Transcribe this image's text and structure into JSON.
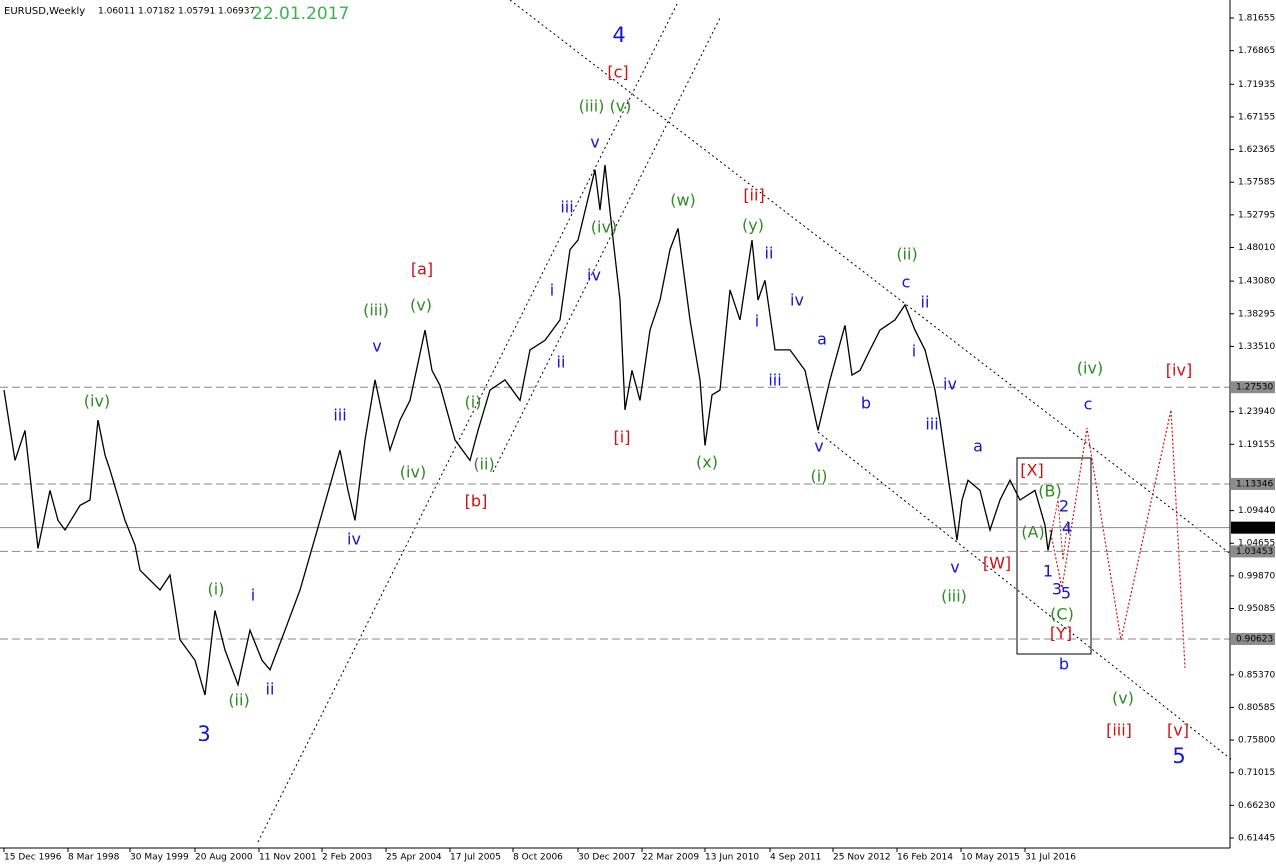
{
  "chart_data": {
    "type": "line",
    "title": "EURUSD,Weekly",
    "ohlc": [
      1.06011,
      1.07182,
      1.05791,
      1.06937
    ],
    "date": "22.01.2017",
    "color": "#000000",
    "xlim": [
      -4,
      1226
    ],
    "ylim": [
      0.6027,
      1.84
    ],
    "xticks": [
      {
        "value": 0,
        "label": "15 Dec 1996"
      },
      {
        "value": 64,
        "label": "8 Mar 1998"
      },
      {
        "value": 126,
        "label": "30 May 1999"
      },
      {
        "value": 191,
        "label": "20 Aug 2000"
      },
      {
        "value": 255,
        "label": "11 Nov 2001"
      },
      {
        "value": 318,
        "label": "2 Feb 2003"
      },
      {
        "value": 382,
        "label": "25 Apr 2004"
      },
      {
        "value": 446,
        "label": "17 Jul 2005"
      },
      {
        "value": 509,
        "label": "8 Oct 2006"
      },
      {
        "value": 574,
        "label": "30 Dec 2007"
      },
      {
        "value": 638,
        "label": "22 Mar 2009"
      },
      {
        "value": 701,
        "label": "13 Jun 2010"
      },
      {
        "value": 766,
        "label": "4 Sep 2011"
      },
      {
        "value": 829,
        "label": "25 Nov 2012"
      },
      {
        "value": 893,
        "label": "16 Feb 2014"
      },
      {
        "value": 957,
        "label": "10 May 2015"
      },
      {
        "value": 1021,
        "label": "31 Jul 2016"
      }
    ],
    "yticks": [
      {
        "value": 1.81655,
        "label": "1.81655"
      },
      {
        "value": 1.76865,
        "label": "1.76865"
      },
      {
        "value": 1.71935,
        "label": "1.71935"
      },
      {
        "value": 1.67155,
        "label": "1.67155"
      },
      {
        "value": 1.62365,
        "label": "1.62365"
      },
      {
        "value": 1.57585,
        "label": "1.57585"
      },
      {
        "value": 1.52795,
        "label": "1.52795"
      },
      {
        "value": 1.4801,
        "label": "1.48010"
      },
      {
        "value": 1.4308,
        "label": "1.43080"
      },
      {
        "value": 1.38295,
        "label": "1.38295"
      },
      {
        "value": 1.3351,
        "label": "1.33510"
      },
      {
        "value": 1.2394,
        "label": "1.23940"
      },
      {
        "value": 1.19155,
        "label": "1.19155"
      },
      {
        "value": 1.0944,
        "label": "1.09440"
      },
      {
        "value": 1.04655,
        "label": "1.04655"
      },
      {
        "value": 0.9987,
        "label": "0.99870"
      },
      {
        "value": 0.95085,
        "label": "0.95085"
      },
      {
        "value": 0.8537,
        "label": "0.85370"
      },
      {
        "value": 0.80585,
        "label": "0.80585"
      },
      {
        "value": 0.758,
        "label": "0.75800"
      },
      {
        "value": 0.71015,
        "label": "0.71015"
      },
      {
        "value": 0.6623,
        "label": "0.66230"
      },
      {
        "value": 0.61445,
        "label": "0.61445"
      }
    ],
    "levels": [
      {
        "value": 1.2753,
        "label": "1.27530"
      },
      {
        "value": 1.13346,
        "label": "1.13346"
      },
      {
        "value": 1.03453,
        "label": "1.03453"
      },
      {
        "value": 0.90623,
        "label": "0.90623"
      }
    ],
    "x": [
      0,
      11,
      21,
      34,
      46,
      54,
      61,
      76,
      86,
      94,
      101,
      106,
      121,
      131,
      136,
      156,
      166,
      176,
      191,
      201,
      211,
      221,
      234,
      246,
      258,
      266,
      281,
      296,
      316,
      336,
      344,
      351,
      361,
      371,
      386,
      396,
      406,
      421,
      428,
      436,
      451,
      466,
      474,
      486,
      501,
      516,
      526,
      541,
      556,
      566,
      574,
      586,
      591,
      596,
      601,
      608,
      616,
      621,
      628,
      636,
      646,
      656,
      666,
      674,
      686,
      696,
      701,
      708,
      716,
      726,
      736,
      748,
      754,
      761,
      771,
      786,
      801,
      814,
      826,
      841,
      848,
      856,
      866,
      876,
      891,
      901,
      911,
      921,
      931,
      936,
      946,
      953,
      958,
      964,
      976,
      986,
      996,
      1006,
      1016,
      1031,
      1041,
      1044,
      1048
    ],
    "values": [
      1.271,
      1.168,
      1.212,
      1.039,
      1.124,
      1.08,
      1.066,
      1.102,
      1.11,
      1.227,
      1.176,
      1.154,
      1.08,
      1.044,
      1.007,
      0.978,
      1.0,
      0.905,
      0.875,
      0.824,
      0.948,
      0.89,
      0.839,
      0.919,
      0.875,
      0.861,
      0.919,
      0.978,
      1.08,
      1.183,
      1.124,
      1.08,
      1.198,
      1.286,
      1.183,
      1.227,
      1.256,
      1.359,
      1.3,
      1.278,
      1.198,
      1.168,
      1.212,
      1.271,
      1.286,
      1.256,
      1.33,
      1.344,
      1.374,
      1.477,
      1.491,
      1.564,
      1.594,
      1.535,
      1.601,
      1.506,
      1.403,
      1.242,
      1.3,
      1.256,
      1.359,
      1.403,
      1.477,
      1.508,
      1.374,
      1.286,
      1.19,
      1.264,
      1.271,
      1.418,
      1.374,
      1.491,
      1.403,
      1.432,
      1.33,
      1.33,
      1.3,
      1.212,
      1.286,
      1.366,
      1.293,
      1.3,
      1.33,
      1.359,
      1.374,
      1.396,
      1.359,
      1.33,
      1.271,
      1.227,
      1.124,
      1.051,
      1.11,
      1.139,
      1.124,
      1.066,
      1.11,
      1.139,
      1.11,
      1.124,
      1.073,
      1.036,
      1.066
    ],
    "annotations": [
      {
        "text": "(iv)",
        "x": 93,
        "y": 1.2535,
        "color": "#2e8b22"
      },
      {
        "text": "3",
        "x": 200,
        "y": 0.7652,
        "color": "#1515d0"
      },
      {
        "text": "(i)",
        "x": 212,
        "y": 0.9778,
        "color": "#2e8b22"
      },
      {
        "text": "i",
        "x": 249,
        "y": 0.969,
        "color": "#1515d0"
      },
      {
        "text": "(ii)",
        "x": 235,
        "y": 0.8151,
        "color": "#2e8b22"
      },
      {
        "text": "ii",
        "x": 266,
        "y": 0.8312,
        "color": "#1515d0"
      },
      {
        "text": "iii",
        "x": 336,
        "y": 1.233,
        "color": "#1515d0"
      },
      {
        "text": "iv",
        "x": 350,
        "y": 1.0511,
        "color": "#1515d0"
      },
      {
        "text": "v",
        "x": 373,
        "y": 1.3341,
        "color": "#1515d0"
      },
      {
        "text": "(iii)",
        "x": 372,
        "y": 1.3869,
        "color": "#2e8b22"
      },
      {
        "text": "(iv)",
        "x": 409,
        "y": 1.1494,
        "color": "#2e8b22"
      },
      {
        "text": "[a]",
        "x": 418,
        "y": 1.4471,
        "color": "#d01010"
      },
      {
        "text": "(v)",
        "x": 417,
        "y": 1.3943,
        "color": "#2e8b22"
      },
      {
        "text": "(i)",
        "x": 469,
        "y": 1.252,
        "color": "#2e8b22"
      },
      {
        "text": "(ii)",
        "x": 480,
        "y": 1.1611,
        "color": "#2e8b22"
      },
      {
        "text": "[b]",
        "x": 472,
        "y": 1.1069,
        "color": "#d01010"
      },
      {
        "text": "i",
        "x": 548,
        "y": 1.4163,
        "color": "#1515d0"
      },
      {
        "text": "ii",
        "x": 557,
        "y": 1.3107,
        "color": "#1515d0"
      },
      {
        "text": "iii",
        "x": 563,
        "y": 1.538,
        "color": "#1515d0"
      },
      {
        "text": "iv",
        "x": 590,
        "y": 1.4383,
        "color": "#1515d0"
      },
      {
        "text": "(iv)",
        "x": 600,
        "y": 1.5087,
        "color": "#2e8b22"
      },
      {
        "text": "v",
        "x": 591,
        "y": 1.6333,
        "color": "#1515d0"
      },
      {
        "text": "(iii) (v)",
        "x": 601,
        "y": 1.6861,
        "color": "#2e8b22"
      },
      {
        "text": "[c]",
        "x": 614,
        "y": 1.7359,
        "color": "#d01010"
      },
      {
        "text": "4",
        "x": 615,
        "y": 1.7902,
        "color": "#1515d0"
      },
      {
        "text": "[i]",
        "x": 618,
        "y": 1.2007,
        "color": "#d01010"
      },
      {
        "text": "(w)",
        "x": 679,
        "y": 1.5482,
        "color": "#2e8b22"
      },
      {
        "text": "(x)",
        "x": 703,
        "y": 1.164,
        "color": "#2e8b22"
      },
      {
        "text": "[ii]",
        "x": 750,
        "y": 1.5555,
        "color": "#d01010"
      },
      {
        "text": "(y)",
        "x": 749,
        "y": 1.5116,
        "color": "#2e8b22"
      },
      {
        "text": "ii",
        "x": 765,
        "y": 1.4705,
        "color": "#1515d0"
      },
      {
        "text": "i",
        "x": 753,
        "y": 1.3708,
        "color": "#1515d0"
      },
      {
        "text": "iv",
        "x": 793,
        "y": 1.4016,
        "color": "#1515d0"
      },
      {
        "text": "iii",
        "x": 771,
        "y": 1.2843,
        "color": "#1515d0"
      },
      {
        "text": "v",
        "x": 815,
        "y": 1.1875,
        "color": "#1515d0"
      },
      {
        "text": "(i)",
        "x": 815,
        "y": 1.1435,
        "color": "#2e8b22"
      },
      {
        "text": "a",
        "x": 818,
        "y": 1.3444,
        "color": "#1515d0"
      },
      {
        "text": "b",
        "x": 862,
        "y": 1.2506,
        "color": "#1515d0"
      },
      {
        "text": "(ii)",
        "x": 903,
        "y": 1.469,
        "color": "#2e8b22"
      },
      {
        "text": "c",
        "x": 902,
        "y": 1.428,
        "color": "#1515d0"
      },
      {
        "text": "ii",
        "x": 921,
        "y": 1.3987,
        "color": "#1515d0"
      },
      {
        "text": "i",
        "x": 910,
        "y": 1.3268,
        "color": "#1515d0"
      },
      {
        "text": "iv",
        "x": 946,
        "y": 1.2784,
        "color": "#1515d0"
      },
      {
        "text": "iii",
        "x": 928,
        "y": 1.2198,
        "color": "#1515d0"
      },
      {
        "text": "a",
        "x": 974,
        "y": 1.1875,
        "color": "#1515d0"
      },
      {
        "text": "v",
        "x": 951,
        "y": 1.0101,
        "color": "#1515d0"
      },
      {
        "text": "(iii)",
        "x": 950,
        "y": 0.9676,
        "color": "#2e8b22"
      },
      {
        "text": "[W]",
        "x": 993,
        "y": 1.016,
        "color": "#d01010"
      },
      {
        "text": "[X]",
        "x": 1028,
        "y": 1.1523,
        "color": "#d01010"
      },
      {
        "text": "(B)",
        "x": 1046,
        "y": 1.1215,
        "color": "#2e8b22"
      },
      {
        "text": "2",
        "x": 1060,
        "y": 1.0995,
        "color": "#1515d0"
      },
      {
        "text": "4",
        "x": 1063,
        "y": 1.0673,
        "color": "#1515d0"
      },
      {
        "text": "(A)",
        "x": 1029,
        "y": 1.0614,
        "color": "#2e8b22"
      },
      {
        "text": "1",
        "x": 1044,
        "y": 1.0042,
        "color": "#1515d0"
      },
      {
        "text": "3",
        "x": 1053,
        "y": 0.9778,
        "color": "#1515d0"
      },
      {
        "text": "5",
        "x": 1062,
        "y": 0.972,
        "color": "#1515d0"
      },
      {
        "text": "(C)",
        "x": 1058,
        "y": 0.9412,
        "color": "#2e8b22"
      },
      {
        "text": "[Y]",
        "x": 1057,
        "y": 0.9133,
        "color": "#d01010"
      },
      {
        "text": "b",
        "x": 1060,
        "y": 0.8678,
        "color": "#1515d0"
      },
      {
        "text": "(iv)",
        "x": 1086,
        "y": 1.3019,
        "color": "#2e8b22"
      },
      {
        "text": "c",
        "x": 1084,
        "y": 1.2491,
        "color": "#1515d0"
      },
      {
        "text": "[iv]",
        "x": 1175,
        "y": 1.299,
        "color": "#d01010"
      },
      {
        "text": "(v)",
        "x": 1119,
        "y": 0.818,
        "color": "#2e8b22"
      },
      {
        "text": "[iii]",
        "x": 1115,
        "y": 0.7711,
        "color": "#d01010"
      },
      {
        "text": "[v]",
        "x": 1174,
        "y": 0.7711,
        "color": "#d01010"
      },
      {
        "text": "5",
        "x": 1175,
        "y": 0.733,
        "color": "#1515d0"
      }
    ]
  }
}
